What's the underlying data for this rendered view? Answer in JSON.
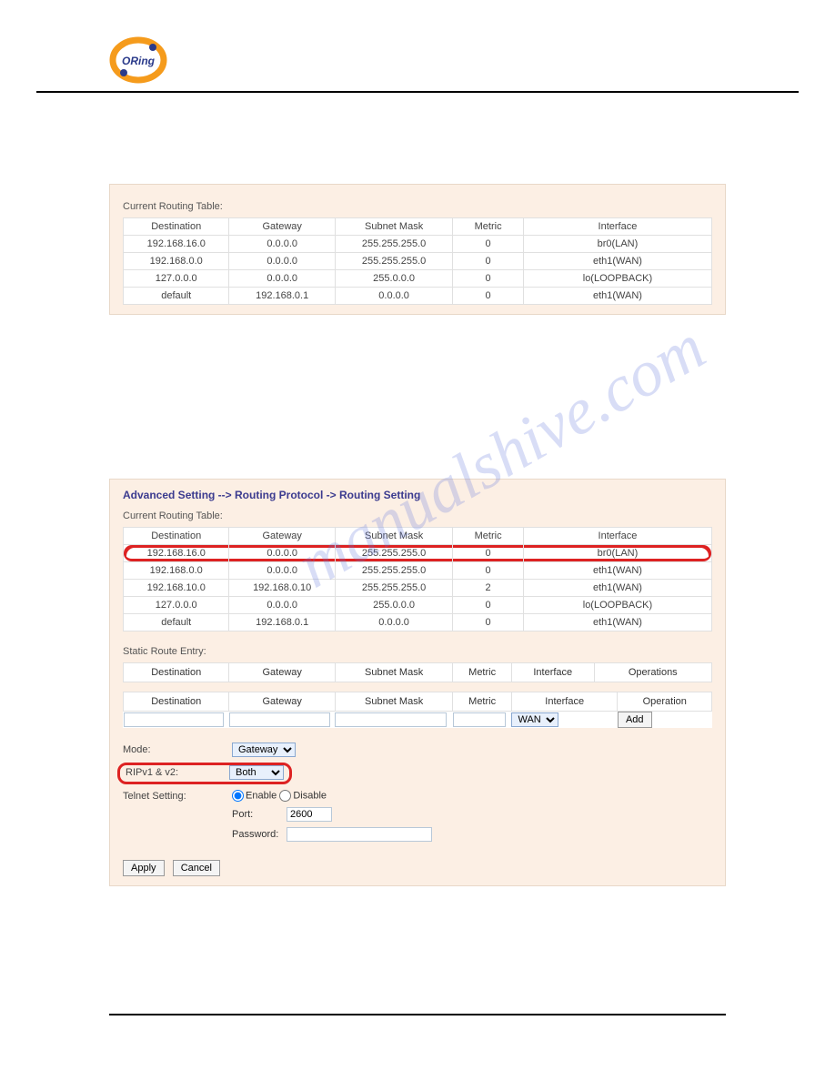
{
  "watermark": "manualshive.com",
  "panel1": {
    "table_title": "Current Routing Table:",
    "headers": [
      "Destination",
      "Gateway",
      "Subnet Mask",
      "Metric",
      "Interface"
    ],
    "rows": [
      {
        "dest": "192.168.16.0",
        "gw": "0.0.0.0",
        "mask": "255.255.255.0",
        "metric": "0",
        "iface": "br0(LAN)"
      },
      {
        "dest": "192.168.0.0",
        "gw": "0.0.0.0",
        "mask": "255.255.255.0",
        "metric": "0",
        "iface": "eth1(WAN)"
      },
      {
        "dest": "127.0.0.0",
        "gw": "0.0.0.0",
        "mask": "255.0.0.0",
        "metric": "0",
        "iface": "lo(LOOPBACK)"
      },
      {
        "dest": "default",
        "gw": "192.168.0.1",
        "mask": "0.0.0.0",
        "metric": "0",
        "iface": "eth1(WAN)"
      }
    ]
  },
  "panel2": {
    "breadcrumb": "Advanced Setting --> Routing Protocol -> Routing Setting",
    "table_title": "Current Routing Table:",
    "headers": [
      "Destination",
      "Gateway",
      "Subnet Mask",
      "Metric",
      "Interface"
    ],
    "rows": [
      {
        "dest": "192.168.16.0",
        "gw": "0.0.0.0",
        "mask": "255.255.255.0",
        "metric": "0",
        "iface": "br0(LAN)",
        "hl": true
      },
      {
        "dest": "192.168.0.0",
        "gw": "0.0.0.0",
        "mask": "255.255.255.0",
        "metric": "0",
        "iface": "eth1(WAN)"
      },
      {
        "dest": "192.168.10.0",
        "gw": "192.168.0.10",
        "mask": "255.255.255.0",
        "metric": "2",
        "iface": "eth1(WAN)"
      },
      {
        "dest": "127.0.0.0",
        "gw": "0.0.0.0",
        "mask": "255.0.0.0",
        "metric": "0",
        "iface": "lo(LOOPBACK)"
      },
      {
        "dest": "default",
        "gw": "192.168.0.1",
        "mask": "0.0.0.0",
        "metric": "0",
        "iface": "eth1(WAN)"
      }
    ],
    "static_title": "Static Route Entry:",
    "static_headers": [
      "Destination",
      "Gateway",
      "Subnet Mask",
      "Metric",
      "Interface",
      "Operations"
    ],
    "entry_headers": [
      "Destination",
      "Gateway",
      "Subnet Mask",
      "Metric",
      "Interface",
      "Operation"
    ],
    "interface_select": "WAN",
    "add_button": "Add",
    "mode_label": "Mode:",
    "mode_value": "Gateway",
    "rip_label": "RIPv1 & v2:",
    "rip_value": "Both",
    "telnet_label": "Telnet Setting:",
    "enable_label": "Enable",
    "disable_label": "Disable",
    "port_label": "Port:",
    "port_value": "2600",
    "password_label": "Password:",
    "apply": "Apply",
    "cancel": "Cancel"
  }
}
